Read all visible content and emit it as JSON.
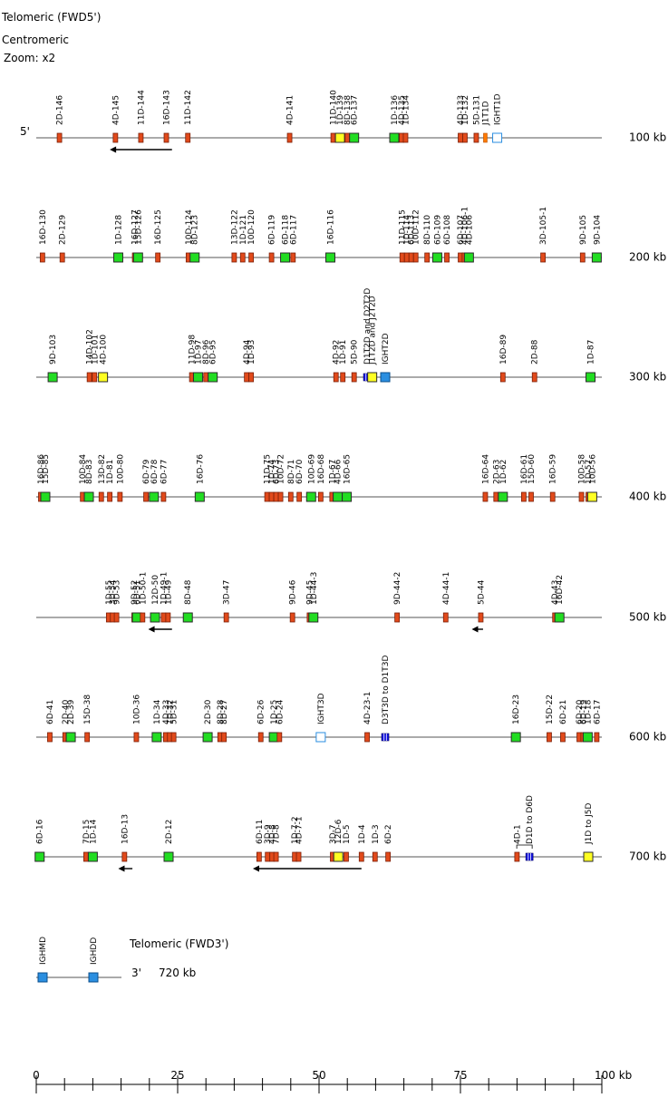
{
  "header": {
    "title": "Telomeric (FWD5')",
    "subtitle": "Centromeric",
    "zoom": "Zoom: x2"
  },
  "colors": {
    "red": "#e14a1b",
    "green": "#22dd22",
    "yellow": "#ffff22",
    "blue": "#2a8ee0",
    "dkblue": "#1010dd",
    "white": "#ffffff",
    "orange": "#ff7a00",
    "line": "#555555"
  },
  "rows": [
    {
      "kb": "100 kb",
      "left_label": "5'",
      "genes": [
        {
          "n": "2D-146",
          "x": 4.1,
          "t": "red"
        },
        {
          "n": "4D-145",
          "x": 14.0,
          "t": "red"
        },
        {
          "n": "11D-144",
          "x": 18.5,
          "t": "red"
        },
        {
          "n": "16D-143",
          "x": 23.0,
          "t": "red"
        },
        {
          "n": "11D-142",
          "x": 26.8,
          "t": "red"
        },
        {
          "n": "4D-141",
          "x": 44.8,
          "t": "red"
        },
        {
          "n": "11D-140",
          "x": 52.5,
          "t": "red"
        },
        {
          "n": "1D-139",
          "x": 53.7,
          "t": "yellow"
        },
        {
          "n": "8D-138",
          "x": 55.0,
          "t": "red"
        },
        {
          "n": "6D-137",
          "x": 56.2,
          "t": "green"
        },
        {
          "n": "1D-136",
          "x": 63.3,
          "t": "green"
        },
        {
          "n": "4D-135",
          "x": 64.6,
          "t": "red"
        },
        {
          "n": "1D-134",
          "x": 65.3,
          "t": "red"
        },
        {
          "n": "4D-133",
          "x": 75.0,
          "t": "red"
        },
        {
          "n": "1D-132",
          "x": 75.8,
          "t": "red"
        },
        {
          "n": "5D-131",
          "x": 77.8,
          "t": "red"
        },
        {
          "n": "J1T1D",
          "x": 79.4,
          "t": "orange"
        },
        {
          "n": "IGHT1D",
          "x": 81.5,
          "t": "white"
        }
      ],
      "arrows": [
        {
          "from": 24,
          "to": 13
        }
      ]
    },
    {
      "kb": "200 kb",
      "left_label": "",
      "genes": [
        {
          "n": "16D-130",
          "x": 1.1,
          "t": "red"
        },
        {
          "n": "2D-129",
          "x": 4.6,
          "t": "red"
        },
        {
          "n": "1D-128",
          "x": 14.5,
          "t": "green"
        },
        {
          "n": "16D-127",
          "x": 17.4,
          "t": "red"
        },
        {
          "n": "15D-126",
          "x": 18.0,
          "t": "green"
        },
        {
          "n": "16D-125",
          "x": 21.5,
          "t": "red"
        },
        {
          "n": "10D-124",
          "x": 26.9,
          "t": "red"
        },
        {
          "n": "8D-123",
          "x": 28.0,
          "t": "green"
        },
        {
          "n": "13D-122",
          "x": 35.0,
          "t": "red"
        },
        {
          "n": "1D-121",
          "x": 36.5,
          "t": "red"
        },
        {
          "n": "10D-120",
          "x": 38.0,
          "t": "red"
        },
        {
          "n": "6D-119",
          "x": 41.6,
          "t": "red"
        },
        {
          "n": "6D-118",
          "x": 44.0,
          "t": "green"
        },
        {
          "n": "6D-117",
          "x": 45.4,
          "t": "red"
        },
        {
          "n": "16D-116",
          "x": 52.0,
          "t": "green"
        },
        {
          "n": "11D-115",
          "x": 64.7,
          "t": "red"
        },
        {
          "n": "1D-114",
          "x": 65.5,
          "t": "red"
        },
        {
          "n": "6D-113",
          "x": 66.3,
          "t": "red"
        },
        {
          "n": "10D-112",
          "x": 67.1,
          "t": "red"
        },
        {
          "n": "8D-110",
          "x": 69.1,
          "t": "red"
        },
        {
          "n": "6D-109",
          "x": 70.9,
          "t": "green"
        },
        {
          "n": "6D-108",
          "x": 72.6,
          "t": "red"
        },
        {
          "n": "6D-107",
          "x": 75.0,
          "t": "red"
        },
        {
          "n": "4D-106-1",
          "x": 75.7,
          "t": "red"
        },
        {
          "n": "4D-106",
          "x": 76.5,
          "t": "green"
        },
        {
          "n": "3D-105-1",
          "x": 89.6,
          "t": "red"
        },
        {
          "n": "9D-105",
          "x": 96.6,
          "t": "red"
        },
        {
          "n": "9D-104",
          "x": 99.1,
          "t": "green"
        }
      ],
      "arrows": []
    },
    {
      "kb": "300 kb",
      "left_label": "",
      "genes": [
        {
          "n": "9D-103",
          "x": 2.9,
          "t": "green"
        },
        {
          "n": "14D-102",
          "x": 9.4,
          "t": "red"
        },
        {
          "n": "1D-101",
          "x": 10.3,
          "t": "red"
        },
        {
          "n": "4D-100",
          "x": 11.8,
          "t": "yellow"
        },
        {
          "n": "11D-98",
          "x": 27.5,
          "t": "red"
        },
        {
          "n": "1D-97",
          "x": 28.6,
          "t": "green"
        },
        {
          "n": "8D-96",
          "x": 30.0,
          "t": "red"
        },
        {
          "n": "6D-95",
          "x": 31.2,
          "t": "green"
        },
        {
          "n": "4D-94",
          "x": 37.2,
          "t": "red"
        },
        {
          "n": "1D-93",
          "x": 38.0,
          "t": "red"
        },
        {
          "n": "4D-92",
          "x": 53.0,
          "t": "red"
        },
        {
          "n": "1D-91",
          "x": 54.2,
          "t": "red"
        },
        {
          "n": "5D-90",
          "x": 56.2,
          "t": "red"
        },
        {
          "n": "D1T2D and D2T2D",
          "x": 58.5,
          "t": "dkblue"
        },
        {
          "n": "J1T2D and J2T2D",
          "x": 59.4,
          "t": "yellow"
        },
        {
          "n": "IGHT2D",
          "x": 61.7,
          "t": "blue"
        },
        {
          "n": "16D-89",
          "x": 82.5,
          "t": "red"
        },
        {
          "n": "2D-88",
          "x": 88.1,
          "t": "red"
        },
        {
          "n": "1D-87",
          "x": 98.0,
          "t": "green"
        }
      ],
      "arrows": []
    },
    {
      "kb": "400 kb",
      "left_label": "",
      "genes": [
        {
          "n": "16D-86",
          "x": 0.8,
          "t": "red"
        },
        {
          "n": "15D-85",
          "x": 1.6,
          "t": "green"
        },
        {
          "n": "10D-84",
          "x": 8.2,
          "t": "red"
        },
        {
          "n": "8D-83",
          "x": 9.3,
          "t": "green"
        },
        {
          "n": "13D-82",
          "x": 11.5,
          "t": "red"
        },
        {
          "n": "1D-81",
          "x": 13.0,
          "t": "red"
        },
        {
          "n": "10D-80",
          "x": 14.8,
          "t": "red"
        },
        {
          "n": "6D-79",
          "x": 19.4,
          "t": "red"
        },
        {
          "n": "6D-78",
          "x": 20.8,
          "t": "green"
        },
        {
          "n": "6D-77",
          "x": 22.5,
          "t": "red"
        },
        {
          "n": "16D-76",
          "x": 28.9,
          "t": "green"
        },
        {
          "n": "11D-75",
          "x": 40.8,
          "t": "red"
        },
        {
          "n": "1D-74",
          "x": 41.6,
          "t": "red"
        },
        {
          "n": "6D-73",
          "x": 42.4,
          "t": "red"
        },
        {
          "n": "10D-72",
          "x": 43.2,
          "t": "red"
        },
        {
          "n": "8D-71",
          "x": 45.0,
          "t": "red"
        },
        {
          "n": "6D-70",
          "x": 46.5,
          "t": "red"
        },
        {
          "n": "10D-69",
          "x": 48.6,
          "t": "green"
        },
        {
          "n": "16D-68",
          "x": 50.3,
          "t": "red"
        },
        {
          "n": "1D-67",
          "x": 52.3,
          "t": "red"
        },
        {
          "n": "4D-66",
          "x": 53.3,
          "t": "green"
        },
        {
          "n": "16D-65",
          "x": 54.9,
          "t": "green"
        },
        {
          "n": "16D-64",
          "x": 79.4,
          "t": "red"
        },
        {
          "n": "2D-63",
          "x": 81.3,
          "t": "red"
        },
        {
          "n": "1D-62",
          "x": 82.5,
          "t": "green"
        },
        {
          "n": "16D-61",
          "x": 86.2,
          "t": "red"
        },
        {
          "n": "15D-60",
          "x": 87.5,
          "t": "red"
        },
        {
          "n": "16D-59",
          "x": 91.3,
          "t": "red"
        },
        {
          "n": "10D-58",
          "x": 96.4,
          "t": "red"
        },
        {
          "n": "1D-57",
          "x": 97.6,
          "t": "red"
        },
        {
          "n": "10D-56",
          "x": 98.3,
          "t": "yellow"
        }
      ],
      "arrows": []
    },
    {
      "kb": "500 kb",
      "left_label": "",
      "genes": [
        {
          "n": "1D-55",
          "x": 12.8,
          "t": "red"
        },
        {
          "n": "3D-54",
          "x": 13.5,
          "t": "red"
        },
        {
          "n": "9D-53",
          "x": 14.2,
          "t": "red"
        },
        {
          "n": "9D-52",
          "x": 17.3,
          "t": "red"
        },
        {
          "n": "6D-51",
          "x": 17.8,
          "t": "green"
        },
        {
          "n": "1D-50-1",
          "x": 18.8,
          "t": "red"
        },
        {
          "n": "12D-50",
          "x": 21.0,
          "t": "green"
        },
        {
          "n": "1D-49-1",
          "x": 22.5,
          "t": "red"
        },
        {
          "n": "1D-49",
          "x": 23.3,
          "t": "red"
        },
        {
          "n": "8D-48",
          "x": 26.8,
          "t": "green"
        },
        {
          "n": "3D-47",
          "x": 33.6,
          "t": "red"
        },
        {
          "n": "9D-46",
          "x": 45.3,
          "t": "red"
        },
        {
          "n": "9D-45",
          "x": 48.3,
          "t": "red"
        },
        {
          "n": "1D-44-3",
          "x": 49.0,
          "t": "green"
        },
        {
          "n": "9D-44-2",
          "x": 63.8,
          "t": "red"
        },
        {
          "n": "4D-44-1",
          "x": 72.4,
          "t": "red"
        },
        {
          "n": "5D-44",
          "x": 78.6,
          "t": "red"
        },
        {
          "n": "4D-43",
          "x": 91.7,
          "t": "red"
        },
        {
          "n": "16D-42",
          "x": 92.5,
          "t": "green"
        }
      ],
      "arrows": [
        {
          "from": 24,
          "to": 19.8
        },
        {
          "from": 79.0,
          "to": 77.0
        }
      ]
    },
    {
      "kb": "600 kb",
      "left_label": "",
      "genes": [
        {
          "n": "6D-41",
          "x": 2.4,
          "t": "red"
        },
        {
          "n": "2D-40",
          "x": 5.1,
          "t": "red"
        },
        {
          "n": "2D-39",
          "x": 6.1,
          "t": "green"
        },
        {
          "n": "15D-38",
          "x": 9.0,
          "t": "red"
        },
        {
          "n": "10D-36",
          "x": 17.7,
          "t": "red"
        },
        {
          "n": "1D-34",
          "x": 21.3,
          "t": "green"
        },
        {
          "n": "4D-33",
          "x": 22.9,
          "t": "red"
        },
        {
          "n": "1D-32",
          "x": 23.6,
          "t": "red"
        },
        {
          "n": "5D-31",
          "x": 24.3,
          "t": "red"
        },
        {
          "n": "2D-30",
          "x": 30.3,
          "t": "green"
        },
        {
          "n": "8D-28",
          "x": 32.5,
          "t": "red"
        },
        {
          "n": "8D-27",
          "x": 33.2,
          "t": "red"
        },
        {
          "n": "6D-26",
          "x": 39.7,
          "t": "red"
        },
        {
          "n": "1D-25",
          "x": 42.0,
          "t": "green"
        },
        {
          "n": "6D-24",
          "x": 43.0,
          "t": "red"
        },
        {
          "n": "IGHT3D",
          "x": 50.3,
          "t": "white"
        },
        {
          "n": "4D-23-1",
          "x": 58.5,
          "t": "red"
        },
        {
          "n": "D3T3D to D1T3D",
          "x": 61.7,
          "t": "dkblue"
        },
        {
          "n": "16D-23",
          "x": 84.8,
          "t": "green"
        },
        {
          "n": "15D-22",
          "x": 90.7,
          "t": "red"
        },
        {
          "n": "6D-21",
          "x": 93.1,
          "t": "red"
        },
        {
          "n": "6D-20",
          "x": 96.0,
          "t": "red"
        },
        {
          "n": "6D-19",
          "x": 96.7,
          "t": "red"
        },
        {
          "n": "1D-18",
          "x": 97.5,
          "t": "green"
        },
        {
          "n": "6D-17",
          "x": 99.1,
          "t": "red"
        }
      ],
      "arrows": []
    },
    {
      "kb": "700 kb",
      "left_label": "",
      "genes": [
        {
          "n": "6D-16",
          "x": 0.6,
          "t": "green"
        },
        {
          "n": "7D-15",
          "x": 8.8,
          "t": "red"
        },
        {
          "n": "1D-14",
          "x": 10.0,
          "t": "green"
        },
        {
          "n": "16D-13",
          "x": 15.6,
          "t": "red"
        },
        {
          "n": "2D-12",
          "x": 23.4,
          "t": "green"
        },
        {
          "n": "6D-11",
          "x": 39.4,
          "t": "red"
        },
        {
          "n": "3D-9",
          "x": 40.9,
          "t": "red"
        },
        {
          "n": "4D-8",
          "x": 41.7,
          "t": "red"
        },
        {
          "n": "7D-8",
          "x": 42.4,
          "t": "red"
        },
        {
          "n": "1D-7-2",
          "x": 45.7,
          "t": "red"
        },
        {
          "n": "4D-7-1",
          "x": 46.4,
          "t": "red"
        },
        {
          "n": "3D-7",
          "x": 52.4,
          "t": "red"
        },
        {
          "n": "12D-6",
          "x": 53.4,
          "t": "yellow"
        },
        {
          "n": "1D-5",
          "x": 54.8,
          "t": "red"
        },
        {
          "n": "1D-4",
          "x": 57.5,
          "t": "red"
        },
        {
          "n": "1D-3",
          "x": 59.9,
          "t": "red"
        },
        {
          "n": "6D-2",
          "x": 62.2,
          "t": "red"
        },
        {
          "n": "4D-1",
          "x": 85.0,
          "t": "red"
        },
        {
          "n": "D1D to D6D",
          "x": 87.2,
          "t": "dkblue"
        },
        {
          "n": "J1D to J5D",
          "x": 97.6,
          "t": "yellow"
        }
      ],
      "arrows": [
        {
          "from": 17,
          "to": 14.5
        },
        {
          "from": 57.5,
          "to": 38.3
        }
      ]
    }
  ],
  "bottom": {
    "genes": [
      {
        "n": "IGHMD",
        "t": "blue"
      },
      {
        "n": "IGHDD",
        "t": "blue"
      }
    ],
    "title": "Telomeric (FWD3')",
    "end_label": "3'",
    "kb": "720 kb"
  },
  "axis": {
    "ticks": [
      "0",
      "25",
      "50",
      "75",
      "100 kb"
    ],
    "tick_values": [
      0,
      25,
      50,
      75,
      100
    ],
    "minor_step": 5
  }
}
